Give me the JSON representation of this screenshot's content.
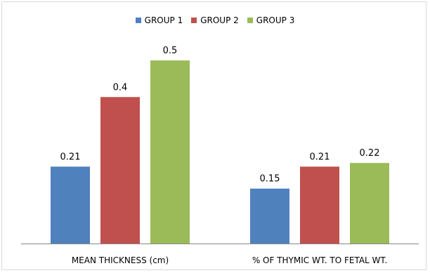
{
  "chart_data": {
    "type": "bar",
    "categories": [
      "MEAN THICKNESS (cm)",
      "% OF THYMIC WT. TO FETAL WT."
    ],
    "series": [
      {
        "name": "GROUP 1",
        "color": "#4f81bd",
        "values": [
          0.21,
          0.15
        ],
        "labels": [
          "0.21",
          "0.15"
        ]
      },
      {
        "name": "GROUP 2",
        "color": "#c0504d",
        "values": [
          0.4,
          0.21
        ],
        "labels": [
          "0.4",
          "0.21"
        ]
      },
      {
        "name": "GROUP 3",
        "color": "#9bbb59",
        "values": [
          0.5,
          0.22
        ],
        "labels": [
          "0.5",
          "0.22"
        ]
      }
    ],
    "title": "",
    "xlabel": "",
    "ylabel": "",
    "ylim": [
      0,
      0.55
    ],
    "grid": false,
    "legend_position": "top"
  }
}
